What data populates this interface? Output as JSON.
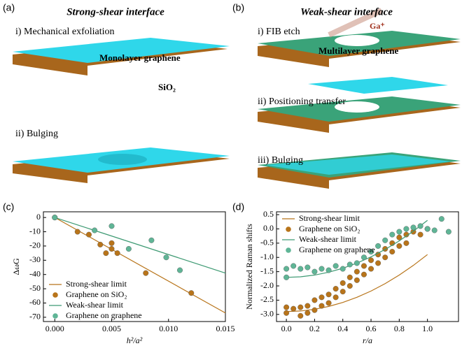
{
  "panels": {
    "a": {
      "label": "(a)",
      "title": "Strong-shear interface",
      "step1": "i) Mechanical exfoliation",
      "layer": "Monolayer graphene",
      "substrate": "SiO₂",
      "step2": "ii) Bulging"
    },
    "b": {
      "label": "(b)",
      "title": "Weak-shear interface",
      "step1": "i) FIB etch",
      "ion": "Ga⁺",
      "layer": "Multilayer graphene",
      "step2": "ii) Positioning transfer",
      "step3": "iii) Bulging"
    }
  },
  "chart_data": [
    {
      "type": "scatter",
      "panel": "(c)",
      "xlabel": "h²/a²",
      "ylabel": "ΔωG",
      "legend": "lower left",
      "xlim": [
        -0.001,
        0.015
      ],
      "ylim": [
        -73,
        4
      ],
      "xticks": [
        {
          "value": 0,
          "label": "0.000"
        },
        0.005,
        {
          "value": 0.01,
          "label": "0.010"
        },
        0.015
      ],
      "yticks": [
        0,
        -10,
        -20,
        -30,
        -40,
        -50,
        -60,
        -70
      ],
      "series": [
        {
          "name": "Strong-shear limit",
          "mode": "line",
          "color": "#b8741a",
          "x": [
            0,
            0.015
          ],
          "values": [
            0,
            -67
          ]
        },
        {
          "name": "Graphene on SiO₂",
          "mode": "markers",
          "color": "#b8741a",
          "x": [
            0,
            0.002,
            0.003,
            0.004,
            0.0045,
            0.005,
            0.005,
            0.0055,
            0.008,
            0.012
          ],
          "values": [
            0,
            -10,
            -12,
            -19,
            -25,
            -18,
            -22,
            -25,
            -39,
            -53
          ]
        },
        {
          "name": "Weak-shear limit",
          "mode": "line",
          "color": "#3e9a73",
          "x": [
            0,
            0.015
          ],
          "values": [
            0,
            -39
          ]
        },
        {
          "name": "Graphene on graphene",
          "mode": "markers",
          "color": "#5fb596",
          "x": [
            0,
            0.0035,
            0.005,
            0.0065,
            0.0085,
            0.0098,
            0.011
          ],
          "values": [
            0,
            -9,
            -6,
            -22,
            -16,
            -28,
            -37
          ]
        }
      ]
    },
    {
      "type": "scatter",
      "panel": "(d)",
      "xlabel": "r/a",
      "ylabel": "Normalized Raman shifts",
      "legend": "upper left",
      "xlim": [
        -0.07,
        1.22
      ],
      "ylim": [
        -3.25,
        0.6
      ],
      "xticks": [
        {
          "value": 0,
          "label": "0.0"
        },
        0.2,
        0.4,
        0.6,
        0.8,
        {
          "value": 1,
          "label": "1.0"
        }
      ],
      "yticks": [
        {
          "value": -3,
          "label": "-3.0"
        },
        -2.5,
        {
          "value": -2,
          "label": "-2.0"
        },
        -1.5,
        {
          "value": -1,
          "label": "-1.0"
        },
        -0.5,
        {
          "value": 0,
          "label": "0.0"
        },
        0.5
      ],
      "series": [
        {
          "name": "Strong-shear limit",
          "mode": "line",
          "color": "#b8741a",
          "x": [
            0,
            0.1,
            0.2,
            0.3,
            0.4,
            0.5,
            0.6,
            0.7,
            0.8,
            0.9,
            1
          ],
          "values": [
            -2.9,
            -2.88,
            -2.82,
            -2.72,
            -2.58,
            -2.4,
            -2.18,
            -1.92,
            -1.62,
            -1.28,
            -0.9
          ]
        },
        {
          "name": "Graphene on SiO₂",
          "mode": "markers",
          "color": "#b8741a",
          "x": [
            0,
            0,
            0.05,
            0.1,
            0.1,
            0.15,
            0.15,
            0.2,
            0.2,
            0.25,
            0.25,
            0.3,
            0.3,
            0.35,
            0.35,
            0.4,
            0.4,
            0.45,
            0.45,
            0.5,
            0.5,
            0.55,
            0.55,
            0.6,
            0.6,
            0.65,
            0.65,
            0.7,
            0.7,
            0.75,
            0.75,
            0.8,
            0.8,
            0.85,
            0.85,
            0.9,
            0.95,
            1
          ],
          "values": [
            -2.75,
            -2.95,
            -2.8,
            -2.75,
            -3.05,
            -2.7,
            -2.95,
            -2.5,
            -2.85,
            -2.4,
            -2.7,
            -2.3,
            -2.6,
            -2.1,
            -2.4,
            -1.9,
            -2.2,
            -1.7,
            -2,
            -1.5,
            -1.8,
            -1.3,
            -1.6,
            -1.1,
            -1.4,
            -0.9,
            -1.2,
            -0.7,
            -1,
            -0.5,
            -0.8,
            -0.3,
            -0.6,
            -0.2,
            -0.5,
            -0.1,
            -0.2,
            0
          ]
        },
        {
          "name": "Weak-shear limit",
          "mode": "line",
          "color": "#3e9a73",
          "x": [
            0,
            0.1,
            0.2,
            0.3,
            0.4,
            0.5,
            0.6,
            0.7,
            0.8,
            0.9,
            1
          ],
          "values": [
            -1.7,
            -1.68,
            -1.62,
            -1.52,
            -1.38,
            -1.2,
            -0.98,
            -0.72,
            -0.42,
            -0.08,
            0.3
          ]
        },
        {
          "name": "Graphene on graphene",
          "mode": "markers",
          "color": "#5fb596",
          "x": [
            0,
            0,
            0.05,
            0.1,
            0.15,
            0.2,
            0.25,
            0.3,
            0.35,
            0.4,
            0.45,
            0.5,
            0.55,
            0.6,
            0.65,
            0.7,
            0.75,
            0.8,
            0.85,
            0.9,
            0.95,
            1,
            1.05,
            1.1,
            1.15
          ],
          "values": [
            -1.4,
            -1.7,
            -1.3,
            -1.4,
            -1.35,
            -1.5,
            -1.4,
            -1.45,
            -1.3,
            -1.4,
            -1.25,
            -1.2,
            -1,
            -0.8,
            -0.6,
            -0.4,
            -0.2,
            -0.1,
            0,
            0.05,
            0.1,
            0,
            -0.05,
            0.35,
            -0.1
          ]
        }
      ]
    }
  ]
}
